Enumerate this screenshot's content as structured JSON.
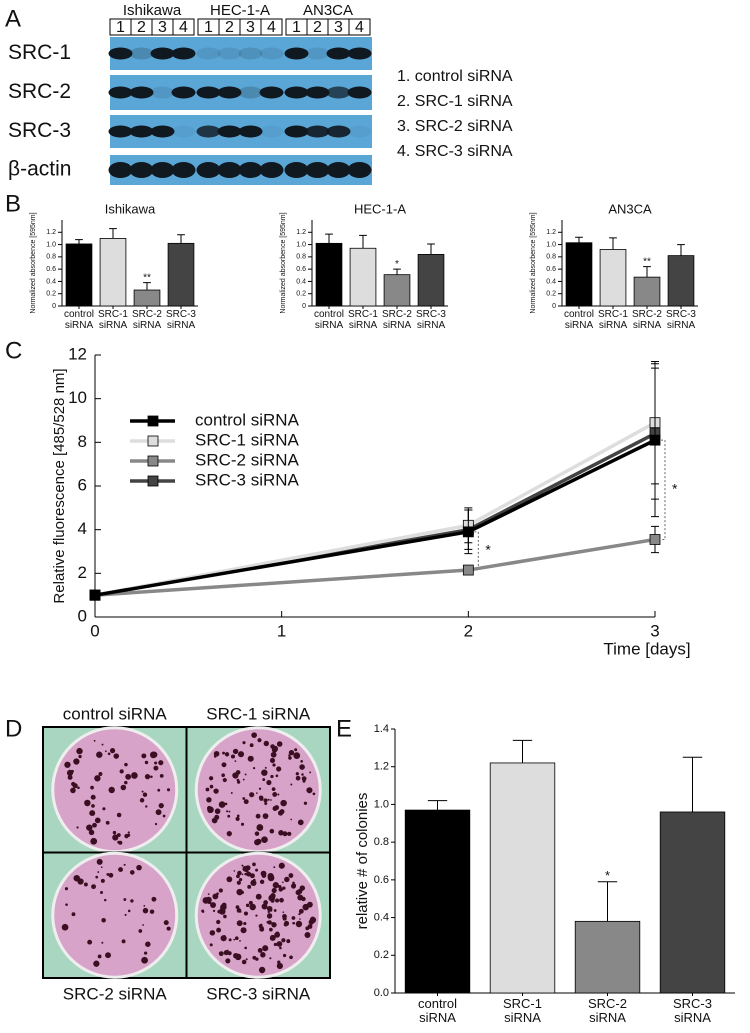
{
  "panel_labels": [
    "A",
    "B",
    "C",
    "D",
    "E"
  ],
  "blot": {
    "cell_lines": [
      "Ishikawa",
      "HEC-1-A",
      "AN3CA"
    ],
    "lanes": [
      "1",
      "2",
      "3",
      "4"
    ],
    "proteins": [
      "SRC-1",
      "SRC-2",
      "SRC-3",
      "β-actin"
    ],
    "legend": [
      "1. control siRNA",
      "2. SRC-1 siRNA",
      "3. SRC-2 siRNA",
      "4. SRC-3 siRNA"
    ]
  },
  "colonies": {
    "labels": [
      "control siRNA",
      "SRC-1 siRNA",
      "SRC-2 siRNA",
      "SRC-3 siRNA"
    ]
  },
  "chart_data": [
    {
      "type": "bar",
      "title": "Ishikawa",
      "y_label": "Normalized absorbence [595nm]",
      "categories": [
        "control siRNA",
        "SRC-1 siRNA",
        "SRC-2 siRNA",
        "SRC-3 siRNA"
      ],
      "values": [
        1.01,
        1.1,
        0.26,
        1.02
      ],
      "errors": [
        0.07,
        0.16,
        0.12,
        0.14
      ],
      "colors": [
        "#000000",
        "#dddddd",
        "#888888",
        "#444444"
      ],
      "annotations": [
        {
          "at": "SRC-2 siRNA",
          "text": "**"
        }
      ],
      "ylim": [
        0,
        1.4
      ],
      "yticks": [
        0,
        0.2,
        0.4,
        0.6,
        0.8,
        {
          "value": 1,
          "label": "1.0"
        },
        1.2
      ]
    },
    {
      "type": "bar",
      "title": "HEC-1-A",
      "y_label": "Normalized absorbence [595nm]",
      "categories": [
        "control siRNA",
        "SRC-1 siRNA",
        "SRC-2 siRNA",
        "SRC-3 siRNA"
      ],
      "values": [
        1.02,
        0.94,
        0.51,
        0.84
      ],
      "errors": [
        0.15,
        0.21,
        0.09,
        0.17
      ],
      "colors": [
        "#000000",
        "#dddddd",
        "#888888",
        "#444444"
      ],
      "annotations": [
        {
          "at": "SRC-2 siRNA",
          "text": "*"
        }
      ],
      "ylim": [
        0,
        1.4
      ],
      "yticks": [
        0,
        0.2,
        0.4,
        0.6,
        0.8,
        {
          "value": 1,
          "label": "1.0"
        },
        1.2
      ]
    },
    {
      "type": "bar",
      "title": "AN3CA",
      "y_label": "Normalized absorbence [595nm]",
      "categories": [
        "control siRNA",
        "SRC-1 siRNA",
        "SRC-2 siRNA",
        "SRC-3 siRNA"
      ],
      "values": [
        1.03,
        0.92,
        0.47,
        0.82
      ],
      "errors": [
        0.09,
        0.19,
        0.17,
        0.18
      ],
      "colors": [
        "#000000",
        "#dddddd",
        "#888888",
        "#444444"
      ],
      "annotations": [
        {
          "at": "SRC-2 siRNA",
          "text": "**"
        }
      ],
      "ylim": [
        0,
        1.4
      ],
      "yticks": [
        0,
        0.2,
        0.4,
        0.6,
        0.8,
        {
          "value": 1,
          "label": "1.0"
        },
        1.2
      ]
    },
    {
      "type": "line",
      "x_label": "Time [days]",
      "y_label": "Relative fluorescence [485/528 nm]",
      "x": [
        0,
        2,
        3
      ],
      "series": [
        {
          "name": "control siRNA",
          "color": "#000000",
          "values": [
            1.0,
            3.9,
            8.1
          ],
          "errors": [
            0.1,
            1.0,
            3.5
          ]
        },
        {
          "name": "SRC-1 siRNA",
          "color": "#dddddd",
          "values": [
            1.0,
            4.2,
            8.9
          ],
          "errors": [
            0.1,
            0.8,
            2.8
          ]
        },
        {
          "name": "SRC-2 siRNA",
          "color": "#888888",
          "values": [
            1.0,
            2.15,
            3.55
          ],
          "errors": [
            0.1,
            0.15,
            0.6
          ]
        },
        {
          "name": "SRC-3 siRNA",
          "color": "#444444",
          "values": [
            1.0,
            4.0,
            8.4
          ],
          "errors": [
            0.1,
            0.9,
            3.0
          ]
        }
      ],
      "annotations": [
        "*",
        "*"
      ],
      "xlim": [
        0,
        3
      ],
      "xticks": [
        0,
        1,
        2,
        3
      ],
      "ylim": [
        0,
        12
      ],
      "yticks": [
        0,
        2,
        4,
        6,
        8,
        10,
        12
      ]
    },
    {
      "type": "bar",
      "y_label": "relative # of colonies",
      "categories": [
        "control siRNA",
        "SRC-1 siRNA",
        "SRC-2 siRNA",
        "SRC-3 siRNA"
      ],
      "values": [
        0.97,
        1.22,
        0.38,
        0.96
      ],
      "errors": [
        0.05,
        0.12,
        0.21,
        0.29
      ],
      "colors": [
        "#000000",
        "#dddddd",
        "#888888",
        "#444444"
      ],
      "annotations": [
        {
          "at": "SRC-2 siRNA",
          "text": "*"
        }
      ],
      "ylim": [
        0,
        1.4
      ],
      "yticks": [
        {
          "value": 0,
          "label": "0.0"
        },
        0.2,
        0.4,
        0.6,
        0.8,
        {
          "value": 1,
          "label": "1.0"
        },
        1.2,
        1.4
      ]
    }
  ]
}
